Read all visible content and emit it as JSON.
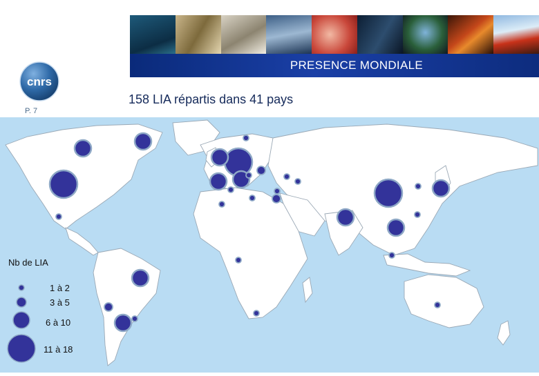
{
  "header": {
    "title": "PRESENCE MONDIALE",
    "photos": [
      "diver",
      "lab-researcher",
      "scientist-lab",
      "water-surface",
      "cell-tissue",
      "researcher-screen",
      "satellite-earth",
      "lava-rock",
      "volcano"
    ]
  },
  "logo": {
    "text": "cnrs",
    "color": "#1f4f8a"
  },
  "page_number": "P. 7",
  "subtitle": "158 LIA répartis dans 41 pays",
  "legend": {
    "title": "Nb de LIA",
    "items": [
      {
        "label": "1 à 2"
      },
      {
        "label": "3 à 5"
      },
      {
        "label": "6 à 10"
      },
      {
        "label": "11 à 18"
      }
    ]
  },
  "colors": {
    "ocean": "#b9dcf3",
    "land": "#ffffff",
    "border": "#9aa8b5",
    "marker_fill": "#33339a",
    "marker_ring": "#8ea8c6"
  },
  "markers": [
    {
      "region": "western-canada",
      "size_class": 3
    },
    {
      "region": "eastern-canada",
      "size_class": 3
    },
    {
      "region": "usa",
      "size_class": 4
    },
    {
      "region": "mexico",
      "size_class": 1
    },
    {
      "region": "brazil",
      "size_class": 3
    },
    {
      "region": "chile",
      "size_class": 2
    },
    {
      "region": "argentina",
      "size_class": 3
    },
    {
      "region": "uruguay",
      "size_class": 1
    },
    {
      "region": "sweden",
      "size_class": 1
    },
    {
      "region": "uk",
      "size_class": 3
    },
    {
      "region": "germany",
      "size_class": 4
    },
    {
      "region": "spain",
      "size_class": 3
    },
    {
      "region": "italy",
      "size_class": 3
    },
    {
      "region": "russia",
      "size_class": 2
    },
    {
      "region": "greece",
      "size_class": 1
    },
    {
      "region": "turkey",
      "size_class": 1
    },
    {
      "region": "georgia",
      "size_class": 1
    },
    {
      "region": "lebanon",
      "size_class": 1
    },
    {
      "region": "israel",
      "size_class": 2
    },
    {
      "region": "tunisia",
      "size_class": 1
    },
    {
      "region": "morocco",
      "size_class": 1
    },
    {
      "region": "senegal",
      "size_class": 1
    },
    {
      "region": "egypt",
      "size_class": 1
    },
    {
      "region": "india",
      "size_class": 3
    },
    {
      "region": "china",
      "size_class": 4
    },
    {
      "region": "japan",
      "size_class": 3
    },
    {
      "region": "korea",
      "size_class": 1
    },
    {
      "region": "taiwan",
      "size_class": 1
    },
    {
      "region": "vietnam-thailand",
      "size_class": 3
    },
    {
      "region": "singapore",
      "size_class": 1
    },
    {
      "region": "australia",
      "size_class": 1
    },
    {
      "region": "south-africa",
      "size_class": 1
    }
  ]
}
